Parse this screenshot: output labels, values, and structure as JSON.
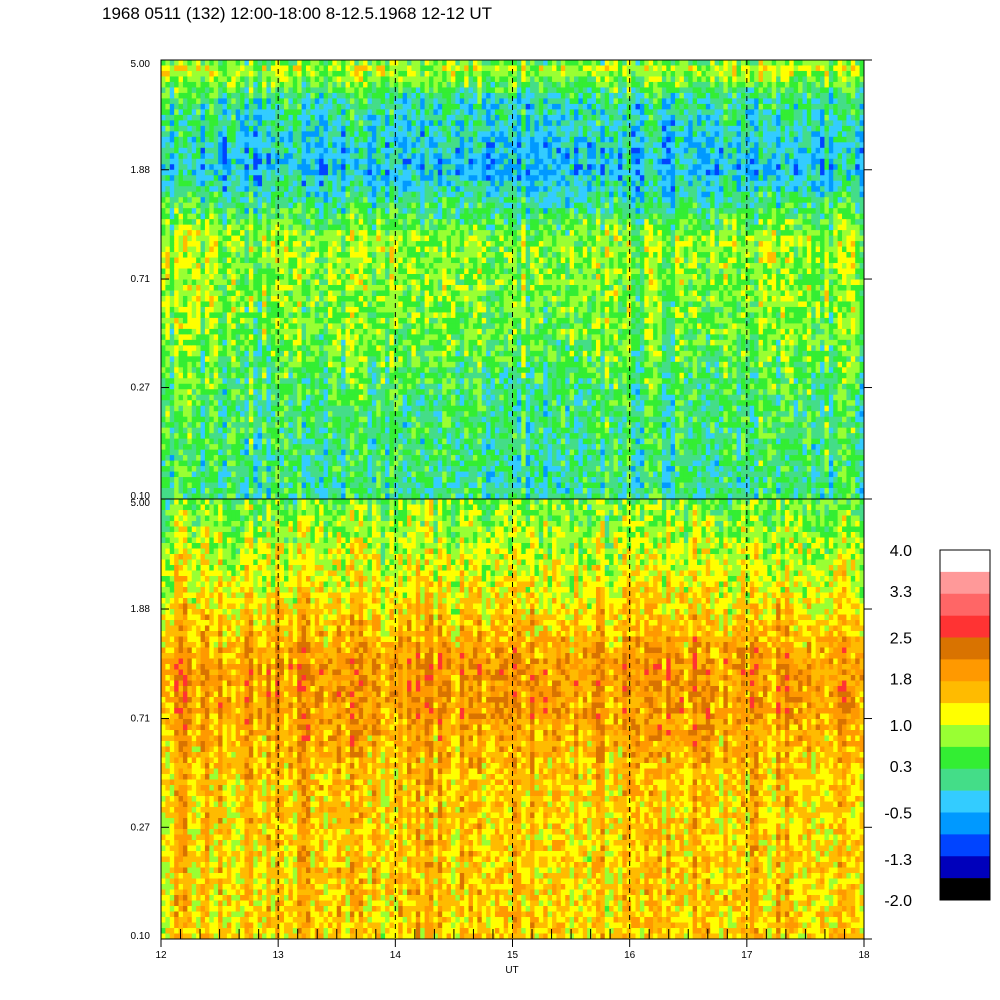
{
  "title": "1968 0511 (132) 12:00-18:00 8-12.5.1968  12-12 UT",
  "chart_data": {
    "type": "heatmap",
    "title": "1968 0511 (132) 12:00-18:00 8-12.5.1968  12-12 UT",
    "xlabel": "UT",
    "ylabel": "",
    "xlim": [
      12,
      18
    ],
    "x_ticks": [
      "12",
      "13",
      "14",
      "15",
      "16",
      "17",
      "18"
    ],
    "x_tick_values": [
      12,
      13,
      14,
      15,
      16,
      17,
      18
    ],
    "dashed_gridlines_x": [
      13,
      14,
      15,
      16,
      17
    ],
    "ylim": [
      0.1,
      5.0
    ],
    "y_scale": "log",
    "panels": [
      {
        "id": "upper",
        "y_ticks": [
          "5.00",
          "1.88",
          "0.71",
          "0.27",
          "0.10"
        ],
        "y_tick_values": [
          5.0,
          1.88,
          0.71,
          0.27,
          0.1
        ],
        "intensity_profile": [
          {
            "freq": 5.0,
            "level": 0.3
          },
          {
            "freq": 4.7,
            "level": 1.0
          },
          {
            "freq": 3.5,
            "level": 0.0
          },
          {
            "freq": 1.88,
            "level": -0.4
          },
          {
            "freq": 1.4,
            "level": 0.1
          },
          {
            "freq": 1.0,
            "level": 0.8
          },
          {
            "freq": 0.71,
            "level": 0.7
          },
          {
            "freq": 0.45,
            "level": 0.6
          },
          {
            "freq": 0.27,
            "level": 0.3
          },
          {
            "freq": 0.18,
            "level": 0.2
          },
          {
            "freq": 0.1,
            "level": 0.1
          }
        ]
      },
      {
        "id": "lower",
        "y_ticks": [
          "5.00",
          "1.88",
          "0.71",
          "0.27",
          "0.10"
        ],
        "y_tick_values": [
          5.0,
          1.88,
          0.71,
          0.27,
          0.1
        ],
        "intensity_profile": [
          {
            "freq": 5.0,
            "level": 0.6
          },
          {
            "freq": 3.2,
            "level": 1.0
          },
          {
            "freq": 1.88,
            "level": 1.4
          },
          {
            "freq": 1.1,
            "level": 2.0
          },
          {
            "freq": 0.71,
            "level": 1.9
          },
          {
            "freq": 0.45,
            "level": 1.6
          },
          {
            "freq": 0.27,
            "level": 1.5
          },
          {
            "freq": 0.1,
            "level": 1.5
          }
        ]
      }
    ],
    "colorbar": {
      "labels": [
        "4.0",
        "3.3",
        "2.5",
        "1.8",
        "1.0",
        "0.3",
        "-0.5",
        "-1.3",
        "-2.0"
      ],
      "label_values": [
        4.0,
        3.3,
        2.5,
        1.8,
        1.0,
        0.3,
        -0.5,
        -1.3,
        -2.0
      ],
      "range": [
        -2.0,
        4.0
      ],
      "colors_top_to_bottom": [
        "#ffffff",
        "#ff9999",
        "#ff6666",
        "#ff3333",
        "#d97300",
        "#ff9900",
        "#ffbb00",
        "#ffff00",
        "#99ff33",
        "#33ee33",
        "#44dd88",
        "#33ccff",
        "#0099ff",
        "#0044ff",
        "#0000bb",
        "#000000"
      ]
    }
  }
}
